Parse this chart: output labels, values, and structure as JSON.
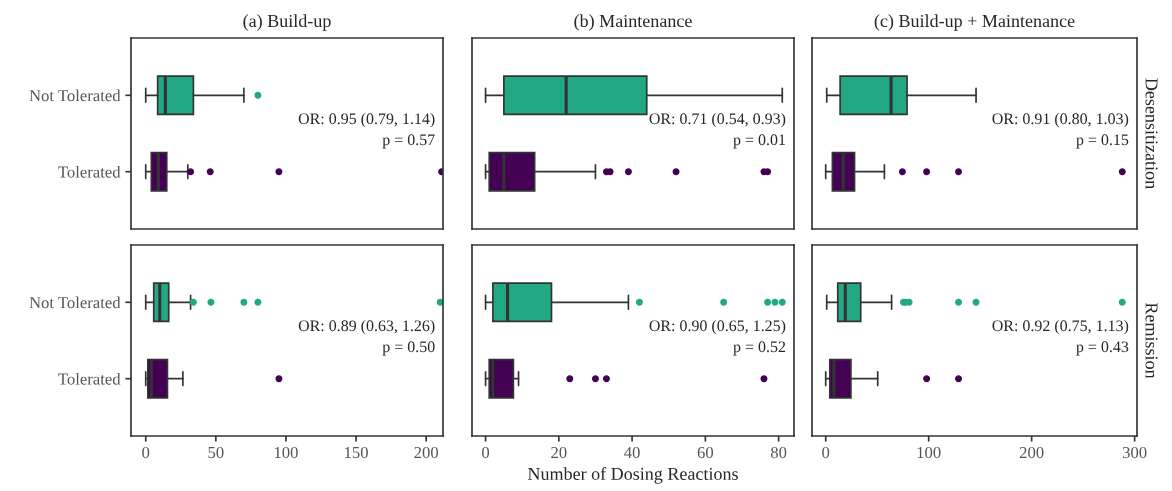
{
  "chart_data": [
    {
      "type": "box",
      "orientation": "horizontal",
      "title": "(a) Build-up",
      "categories": [
        "Not Tolerated",
        "Tolerated"
      ],
      "colors": [
        "#22a884",
        "#440154"
      ],
      "boxes": [
        {
          "low": 0,
          "q1": 8.5,
          "median": 14,
          "q3": 34,
          "high": 70,
          "outliers": [
            80
          ]
        },
        {
          "low": 0,
          "q1": 4,
          "median": 9,
          "q3": 15,
          "high": 30,
          "outliers": [
            32,
            46,
            95,
            211
          ]
        }
      ],
      "xlim": [
        -10.5,
        212
      ],
      "xticks": [
        0,
        50,
        100,
        150,
        200
      ],
      "tick_labels": "y",
      "grid": false,
      "legend": false,
      "annotations": [
        "OR: 0.95 (0.79, 1.14)",
        "p = 0.57"
      ]
    },
    {
      "type": "box",
      "orientation": "horizontal",
      "title": "(b) Maintenance",
      "colors": [
        "#22a884",
        "#440154"
      ],
      "boxes": [
        {
          "low": 0,
          "q1": 5,
          "median": 22,
          "q3": 44,
          "high": 81
        },
        {
          "low": 0,
          "q1": 1,
          "median": 5,
          "q3": 13.4,
          "high": 30,
          "outliers": [
            33,
            34,
            39,
            52,
            76,
            77
          ]
        }
      ],
      "xlim": [
        -3.7,
        84.2
      ],
      "xticks": [
        0,
        20,
        40,
        60,
        80
      ],
      "tick_labels": false,
      "grid": false,
      "legend": false,
      "annotations": [
        "OR: 0.71 (0.54, 0.93)",
        "p = 0.01"
      ]
    },
    {
      "type": "box",
      "orientation": "horizontal",
      "title": "(c) Build-up + Maintenance",
      "y2label": "Desensitization",
      "colors": [
        "#22a884",
        "#440154"
      ],
      "boxes": [
        {
          "low": 1,
          "q1": 14,
          "median": 63.5,
          "q3": 79,
          "high": 146
        },
        {
          "low": 0,
          "q1": 6.5,
          "median": 17,
          "q3": 28,
          "high": 57,
          "outliers": [
            74.5,
            98,
            129,
            288
          ]
        }
      ],
      "xlim": [
        -13.3,
        302.3
      ],
      "xticks": [
        0,
        100,
        200,
        300
      ],
      "tick_labels": false,
      "grid": false,
      "legend": false,
      "annotations": [
        "OR: 0.91 (0.80, 1.03)",
        "p = 0.15"
      ]
    },
    {
      "type": "box",
      "orientation": "horizontal",
      "categories": [
        "Not Tolerated",
        "Tolerated"
      ],
      "colors": [
        "#22a884",
        "#440154"
      ],
      "boxes": [
        {
          "low": 0,
          "q1": 5.7,
          "median": 10,
          "q3": 16.4,
          "high": 32,
          "outliers": [
            34,
            46.5,
            70,
            80,
            210
          ]
        },
        {
          "low": 0,
          "q1": 1.5,
          "median": 4,
          "q3": 15.5,
          "high": 26.5,
          "outliers": [
            95
          ]
        }
      ],
      "xlim": [
        -10.5,
        212
      ],
      "xticks": [
        0,
        50,
        100,
        150,
        200
      ],
      "grid": false,
      "legend": false,
      "annotations": [
        "OR: 0.89 (0.63, 1.26)",
        "p = 0.50"
      ]
    },
    {
      "type": "box",
      "orientation": "horizontal",
      "xlabel": "Number of Dosing Reactions",
      "colors": [
        "#22a884",
        "#440154"
      ],
      "boxes": [
        {
          "low": 0,
          "q1": 2,
          "median": 6,
          "q3": 18,
          "high": 39,
          "outliers": [
            42,
            65,
            77,
            79,
            81
          ]
        },
        {
          "low": 0,
          "q1": 1,
          "median": 2,
          "q3": 7.6,
          "high": 9,
          "outliers": [
            23,
            30,
            33,
            76
          ]
        }
      ],
      "xlim": [
        -3.7,
        84.2
      ],
      "xticks": [
        0,
        20,
        40,
        60,
        80
      ],
      "tick_labels": "x",
      "grid": false,
      "legend": false,
      "annotations": [
        "OR: 0.90 (0.65, 1.25)",
        "p = 0.52"
      ]
    },
    {
      "type": "box",
      "orientation": "horizontal",
      "y2label": "Remission",
      "colors": [
        "#22a884",
        "#440154"
      ],
      "boxes": [
        {
          "low": 1,
          "q1": 11.7,
          "median": 19,
          "q3": 34,
          "high": 64,
          "outliers": [
            75.5,
            77.5,
            81,
            129,
            146,
            288
          ]
        },
        {
          "low": 0,
          "q1": 4,
          "median": 8,
          "q3": 24.5,
          "high": 50.5,
          "outliers": [
            98,
            129
          ]
        }
      ],
      "xlim": [
        -13.3,
        302.3
      ],
      "xticks": [
        0,
        100,
        200,
        300
      ],
      "tick_labels": "x",
      "grid": false,
      "legend": false,
      "annotations": [
        "OR: 0.92 (0.75, 1.13)",
        "p = 0.43"
      ]
    }
  ]
}
